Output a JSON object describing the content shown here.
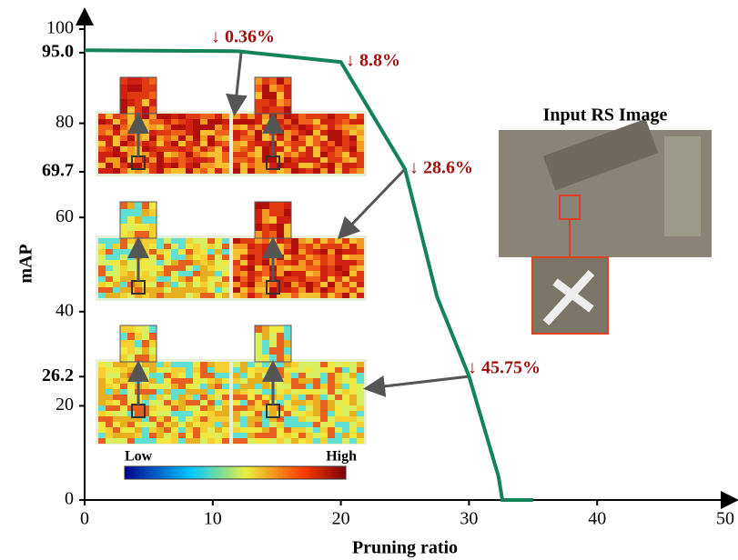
{
  "chart_data": {
    "type": "line",
    "x_label": "Pruning ratio",
    "y_label": "mAP",
    "x": [
      0,
      12,
      20,
      25,
      27.5,
      30,
      32.3,
      32.6,
      35
    ],
    "series": [
      {
        "color": "#15835a",
        "values": [
          95.5,
          95.3,
          93.0,
          70.3,
          43.2,
          26.3,
          5.0,
          0,
          0
        ]
      }
    ],
    "xlim": [
      0,
      50
    ],
    "xticks": [
      0,
      10,
      20,
      30,
      40,
      50
    ],
    "ylim": [
      0,
      100
    ],
    "yticks": [
      0,
      20,
      40,
      60,
      80,
      100
    ],
    "highlight_yticks": [
      {
        "value": 95.0,
        "label": "95.0"
      },
      {
        "value": 69.7,
        "label": "69.7"
      },
      {
        "value": 26.2,
        "label": "26.2"
      }
    ],
    "annotations": [
      "↓ 0.36%",
      "↓ 8.8%",
      "↓ 28.6%",
      "↓ 45.75%"
    ],
    "colorbar_labels": [
      "Low",
      "High"
    ],
    "image_title": "Input RS Image"
  }
}
